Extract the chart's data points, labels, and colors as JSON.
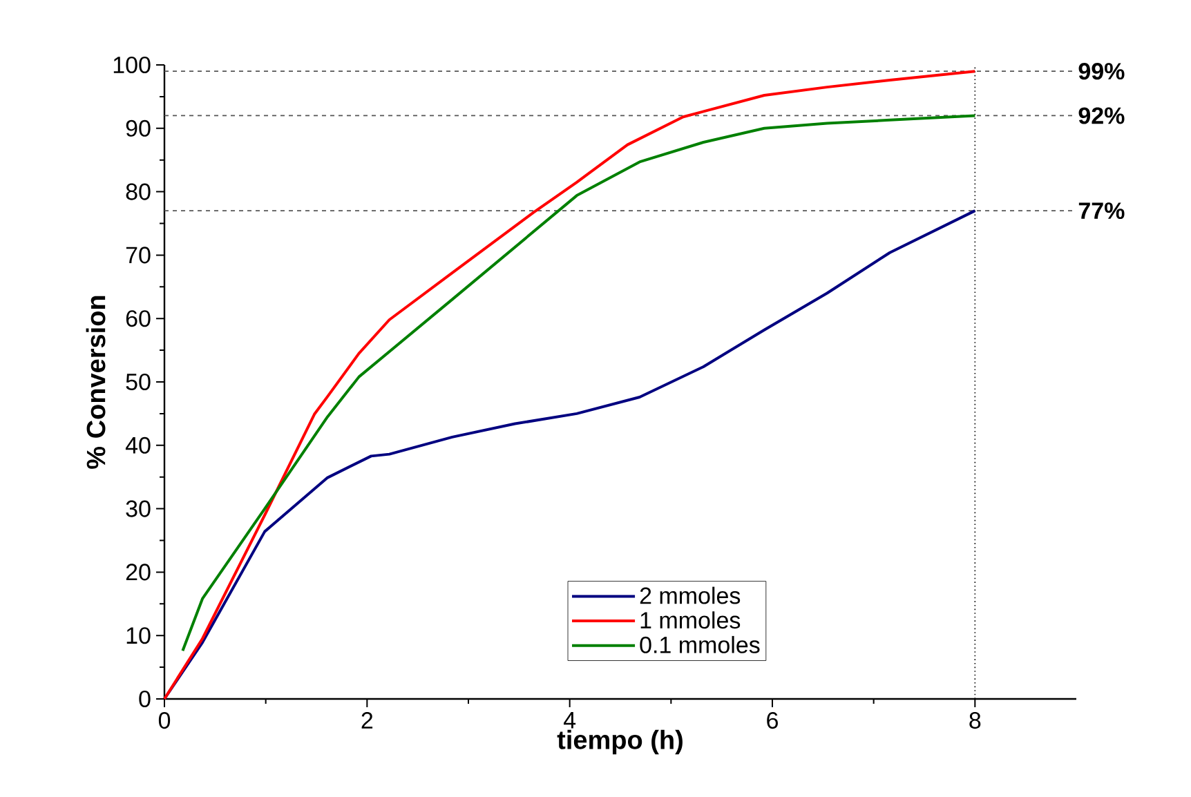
{
  "chart_data": {
    "type": "line",
    "xlabel": "tiempo (h)",
    "ylabel": "% Conversion",
    "xlim": [
      0,
      9
    ],
    "ylim": [
      0,
      100
    ],
    "xticks": [
      0,
      2,
      4,
      6,
      8
    ],
    "yticks": [
      0,
      10,
      20,
      30,
      40,
      50,
      60,
      70,
      80,
      90,
      100
    ],
    "legend": "bottom right",
    "grid": false,
    "series": [
      {
        "name": "2 mmoles",
        "color": "#000080",
        "x": [
          0,
          0.375,
          0.99,
          1.61,
          2.04,
          2.22,
          2.84,
          3.46,
          4.07,
          4.69,
          5.32,
          5.92,
          6.54,
          7.16,
          8
        ],
        "values": [
          0,
          8.9,
          26.4,
          34.9,
          38.3,
          38.6,
          41.3,
          43.4,
          45,
          47.6,
          52.4,
          58.2,
          64,
          70.4,
          77
        ]
      },
      {
        "name": "1 mmoles",
        "color": "#ff0000",
        "x": [
          0,
          0.375,
          0.99,
          1.48,
          1.61,
          1.92,
          2.22,
          2.84,
          3.64,
          4.07,
          4.57,
          5.12,
          5.92,
          6.54,
          7.16,
          8
        ],
        "values": [
          0,
          9.5,
          29,
          44.9,
          47.7,
          54.5,
          59.8,
          67.2,
          76.7,
          81.5,
          87.4,
          91.8,
          95.2,
          96.5,
          97.6,
          99
        ]
      },
      {
        "name": "0.1 mmoles",
        "color": "#008000",
        "x": [
          0.18,
          0.375,
          0.99,
          1.61,
          1.92,
          2.84,
          4.07,
          4.69,
          5.32,
          5.92,
          6.54,
          7.16,
          8
        ],
        "values": [
          7.6,
          15.8,
          30,
          44.5,
          50.8,
          63,
          79.4,
          84.7,
          87.8,
          90,
          90.8,
          91.3,
          92
        ]
      }
    ],
    "ref_lines": [
      {
        "axis": "y",
        "value": 99,
        "label": "99%",
        "color": "#555555",
        "line_style": "dashed"
      },
      {
        "axis": "y",
        "value": 92,
        "label": "92%",
        "color": "#555555",
        "line_style": "dashed"
      },
      {
        "axis": "y",
        "value": 77,
        "label": "77%",
        "color": "#555555",
        "line_style": "dashed"
      },
      {
        "axis": "x",
        "value": 8,
        "color": "#000000",
        "line_style": "dotted"
      }
    ]
  }
}
